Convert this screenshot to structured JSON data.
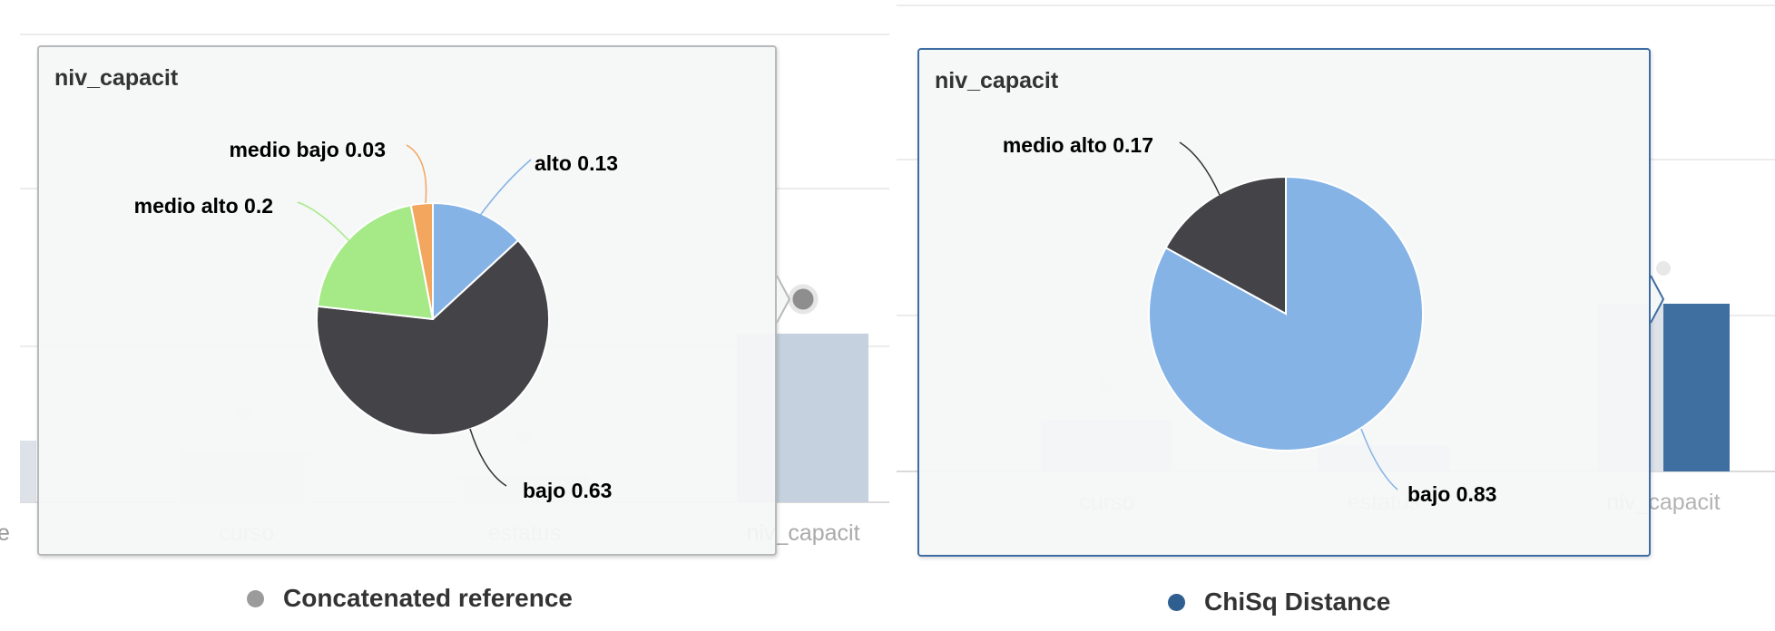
{
  "colors": {
    "ghost_bar_light": "#dde2e8",
    "ghost_bar_mid": "#c5d1de",
    "chisq_bar": "#3f6fa1",
    "reference_marker": "#8e8e8e",
    "gridline": "#ececec",
    "axis_label": "#c9c9c9",
    "leader_line": "#333333"
  },
  "left_panel": {
    "background_chart": {
      "categories": [
        "e",
        "curso",
        "estatus",
        "niv_capacit"
      ]
    },
    "tooltip": {
      "title": "niv_capacit"
    },
    "legend": {
      "label": "Concatenated reference",
      "color": "#9b9b9b"
    }
  },
  "right_panel": {
    "background_chart": {
      "categories": [
        "curso",
        "estatus",
        "niv_capacit"
      ]
    },
    "tooltip": {
      "title": "niv_capacit"
    },
    "legend": {
      "label": "ChiSq Distance",
      "color": "#2f5e91"
    }
  },
  "chart_data": [
    {
      "type": "pie",
      "title": "niv_capacit",
      "slices": [
        {
          "label": "alto",
          "value": 0.13,
          "color": "#85b3e6"
        },
        {
          "label": "bajo",
          "value": 0.63,
          "color": "#434348"
        },
        {
          "label": "medio alto",
          "value": 0.2,
          "color": "#a6ea88"
        },
        {
          "label": "medio bajo",
          "value": 0.03,
          "color": "#f2a65e"
        }
      ],
      "data_labels": [
        "alto 0.13",
        "bajo 0.63",
        "medio alto 0.2",
        "medio bajo 0.03"
      ]
    },
    {
      "type": "pie",
      "title": "niv_capacit",
      "slices": [
        {
          "label": "bajo",
          "value": 0.83,
          "color": "#85b3e6"
        },
        {
          "label": "medio alto",
          "value": 0.17,
          "color": "#434348"
        }
      ],
      "data_labels": [
        "bajo 0.83",
        "medio alto 0.17"
      ]
    }
  ]
}
